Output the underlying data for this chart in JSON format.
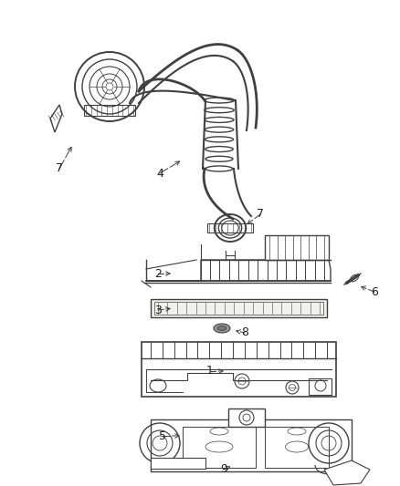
{
  "background_color": "#ffffff",
  "line_color": "#404040",
  "label_color": "#222222",
  "fig_width": 4.38,
  "fig_height": 5.33,
  "dpi": 100
}
